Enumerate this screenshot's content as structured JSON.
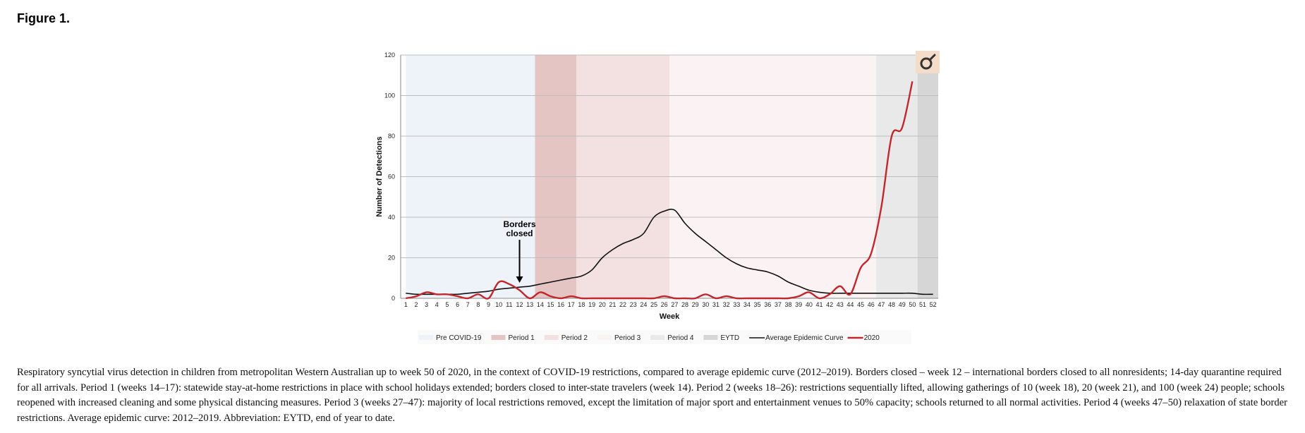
{
  "figure": {
    "label": "Figure 1."
  },
  "chart_data": {
    "type": "line",
    "title": "",
    "xlabel": "Week",
    "ylabel": "Number of Detections",
    "xlim": [
      1,
      52
    ],
    "ylim": [
      0,
      120
    ],
    "yticks": [
      0,
      20,
      40,
      60,
      80,
      100,
      120
    ],
    "grid": true,
    "weeks": [
      1,
      2,
      3,
      4,
      5,
      6,
      7,
      8,
      9,
      10,
      11,
      12,
      13,
      14,
      15,
      16,
      17,
      18,
      19,
      20,
      21,
      22,
      23,
      24,
      25,
      26,
      27,
      28,
      29,
      30,
      31,
      32,
      33,
      34,
      35,
      36,
      37,
      38,
      39,
      40,
      41,
      42,
      43,
      44,
      45,
      46,
      47,
      48,
      49,
      50,
      51,
      52
    ],
    "periods": [
      {
        "name": "Pre COVID-19",
        "start": 1,
        "end": 13.5,
        "color": "#eef2f9"
      },
      {
        "name": "Period 1",
        "start": 13.5,
        "end": 17.5,
        "color": "#e5c4c4"
      },
      {
        "name": "Period 2",
        "start": 17.5,
        "end": 26.5,
        "color": "#f3e1e1"
      },
      {
        "name": "Period 3",
        "start": 26.5,
        "end": 46.5,
        "color": "#fbf3f3"
      },
      {
        "name": "Period 4",
        "start": 46.5,
        "end": 50.5,
        "color": "#e9e9e9"
      },
      {
        "name": "EYTD",
        "start": 50.5,
        "end": 52.5,
        "color": "#d6d6d6"
      }
    ],
    "series": [
      {
        "name": "Average Epidemic Curve",
        "color": "#111111",
        "x": [
          1,
          2,
          3,
          4,
          5,
          6,
          7,
          8,
          9,
          10,
          11,
          12,
          13,
          14,
          15,
          16,
          17,
          18,
          19,
          20,
          21,
          22,
          23,
          24,
          25,
          26,
          27,
          28,
          29,
          30,
          31,
          32,
          33,
          34,
          35,
          36,
          37,
          38,
          39,
          40,
          41,
          42,
          43,
          44,
          45,
          46,
          47,
          48,
          49,
          50,
          51,
          52
        ],
        "values": [
          2.5,
          2,
          2,
          2,
          2,
          2,
          2.5,
          3,
          3.5,
          4.5,
          5,
          5.5,
          6,
          7,
          8,
          9,
          10,
          11,
          14,
          20,
          24,
          27,
          29,
          32,
          40,
          43,
          43.5,
          37,
          32,
          28,
          24,
          20,
          17,
          15,
          14,
          13,
          11,
          8,
          6,
          4,
          3,
          2.5,
          2.5,
          2.5,
          2.5,
          2.5,
          2.5,
          2.5,
          2.5,
          2.5,
          2,
          2
        ]
      },
      {
        "name": "2020",
        "color": "#c1272d",
        "x": [
          1,
          2,
          3,
          4,
          5,
          6,
          7,
          8,
          9,
          10,
          11,
          12,
          13,
          14,
          15,
          16,
          17,
          18,
          19,
          20,
          21,
          22,
          23,
          24,
          25,
          26,
          27,
          28,
          29,
          30,
          31,
          32,
          33,
          34,
          35,
          36,
          37,
          38,
          39,
          40,
          41,
          42,
          43,
          44,
          45,
          46,
          47,
          48,
          49,
          50
        ],
        "values": [
          0,
          1,
          3,
          2,
          2,
          1,
          0,
          2,
          0,
          8,
          7,
          4,
          0,
          3,
          1,
          0,
          1,
          0,
          0,
          0,
          0,
          0,
          0,
          0,
          0,
          1,
          0,
          0,
          0,
          2,
          0,
          1,
          0,
          0,
          0,
          0,
          0,
          0,
          1,
          3,
          0,
          2,
          6,
          2,
          15,
          22,
          45,
          80,
          84,
          107
        ]
      }
    ],
    "annotations": [
      {
        "text_lines": [
          "Borders",
          "closed"
        ],
        "x": 12,
        "arrow_to_y": 8
      }
    ],
    "legend": {
      "placement": "bottom",
      "entries": [
        "Pre COVID-19",
        "Period 1",
        "Period 2",
        "Period 3",
        "Period 4",
        "EYTD",
        "Average Epidemic Curve",
        "2020"
      ]
    }
  },
  "caption": "Respiratory syncytial virus detection in children from metropolitan Western Australian up to week 50 of 2020, in the context of COVID-19 restrictions, compared to average epidemic curve (2012–2019). Borders closed – week 12 – international borders closed to all nonresidents; 14-day quarantine required for all arrivals. Period 1 (weeks 14–17): statewide stay-at-home restrictions in place with school holidays extended; borders closed to inter-state travelers (week 14). Period 2 (weeks 18–26): restrictions sequentially lifted, allowing gatherings of 10 (week 18), 20 (week 21), and 100 (week 24) people; schools reopened with increased cleaning and some physical distancing measures. Period 3 (weeks 27–47): majority of local restrictions removed, except the limitation of major sport and entertainment venues to 50% capacity; schools returned to all normal activities. Period 4 (weeks 47–50) relaxation of state border restrictions. Average epidemic curve: 2012–2019. Abbreviation: EYTD, end of year to date.",
  "icons": {
    "corner_tool": "magnifier-icon",
    "corner_bg": "#f5dcc8"
  }
}
